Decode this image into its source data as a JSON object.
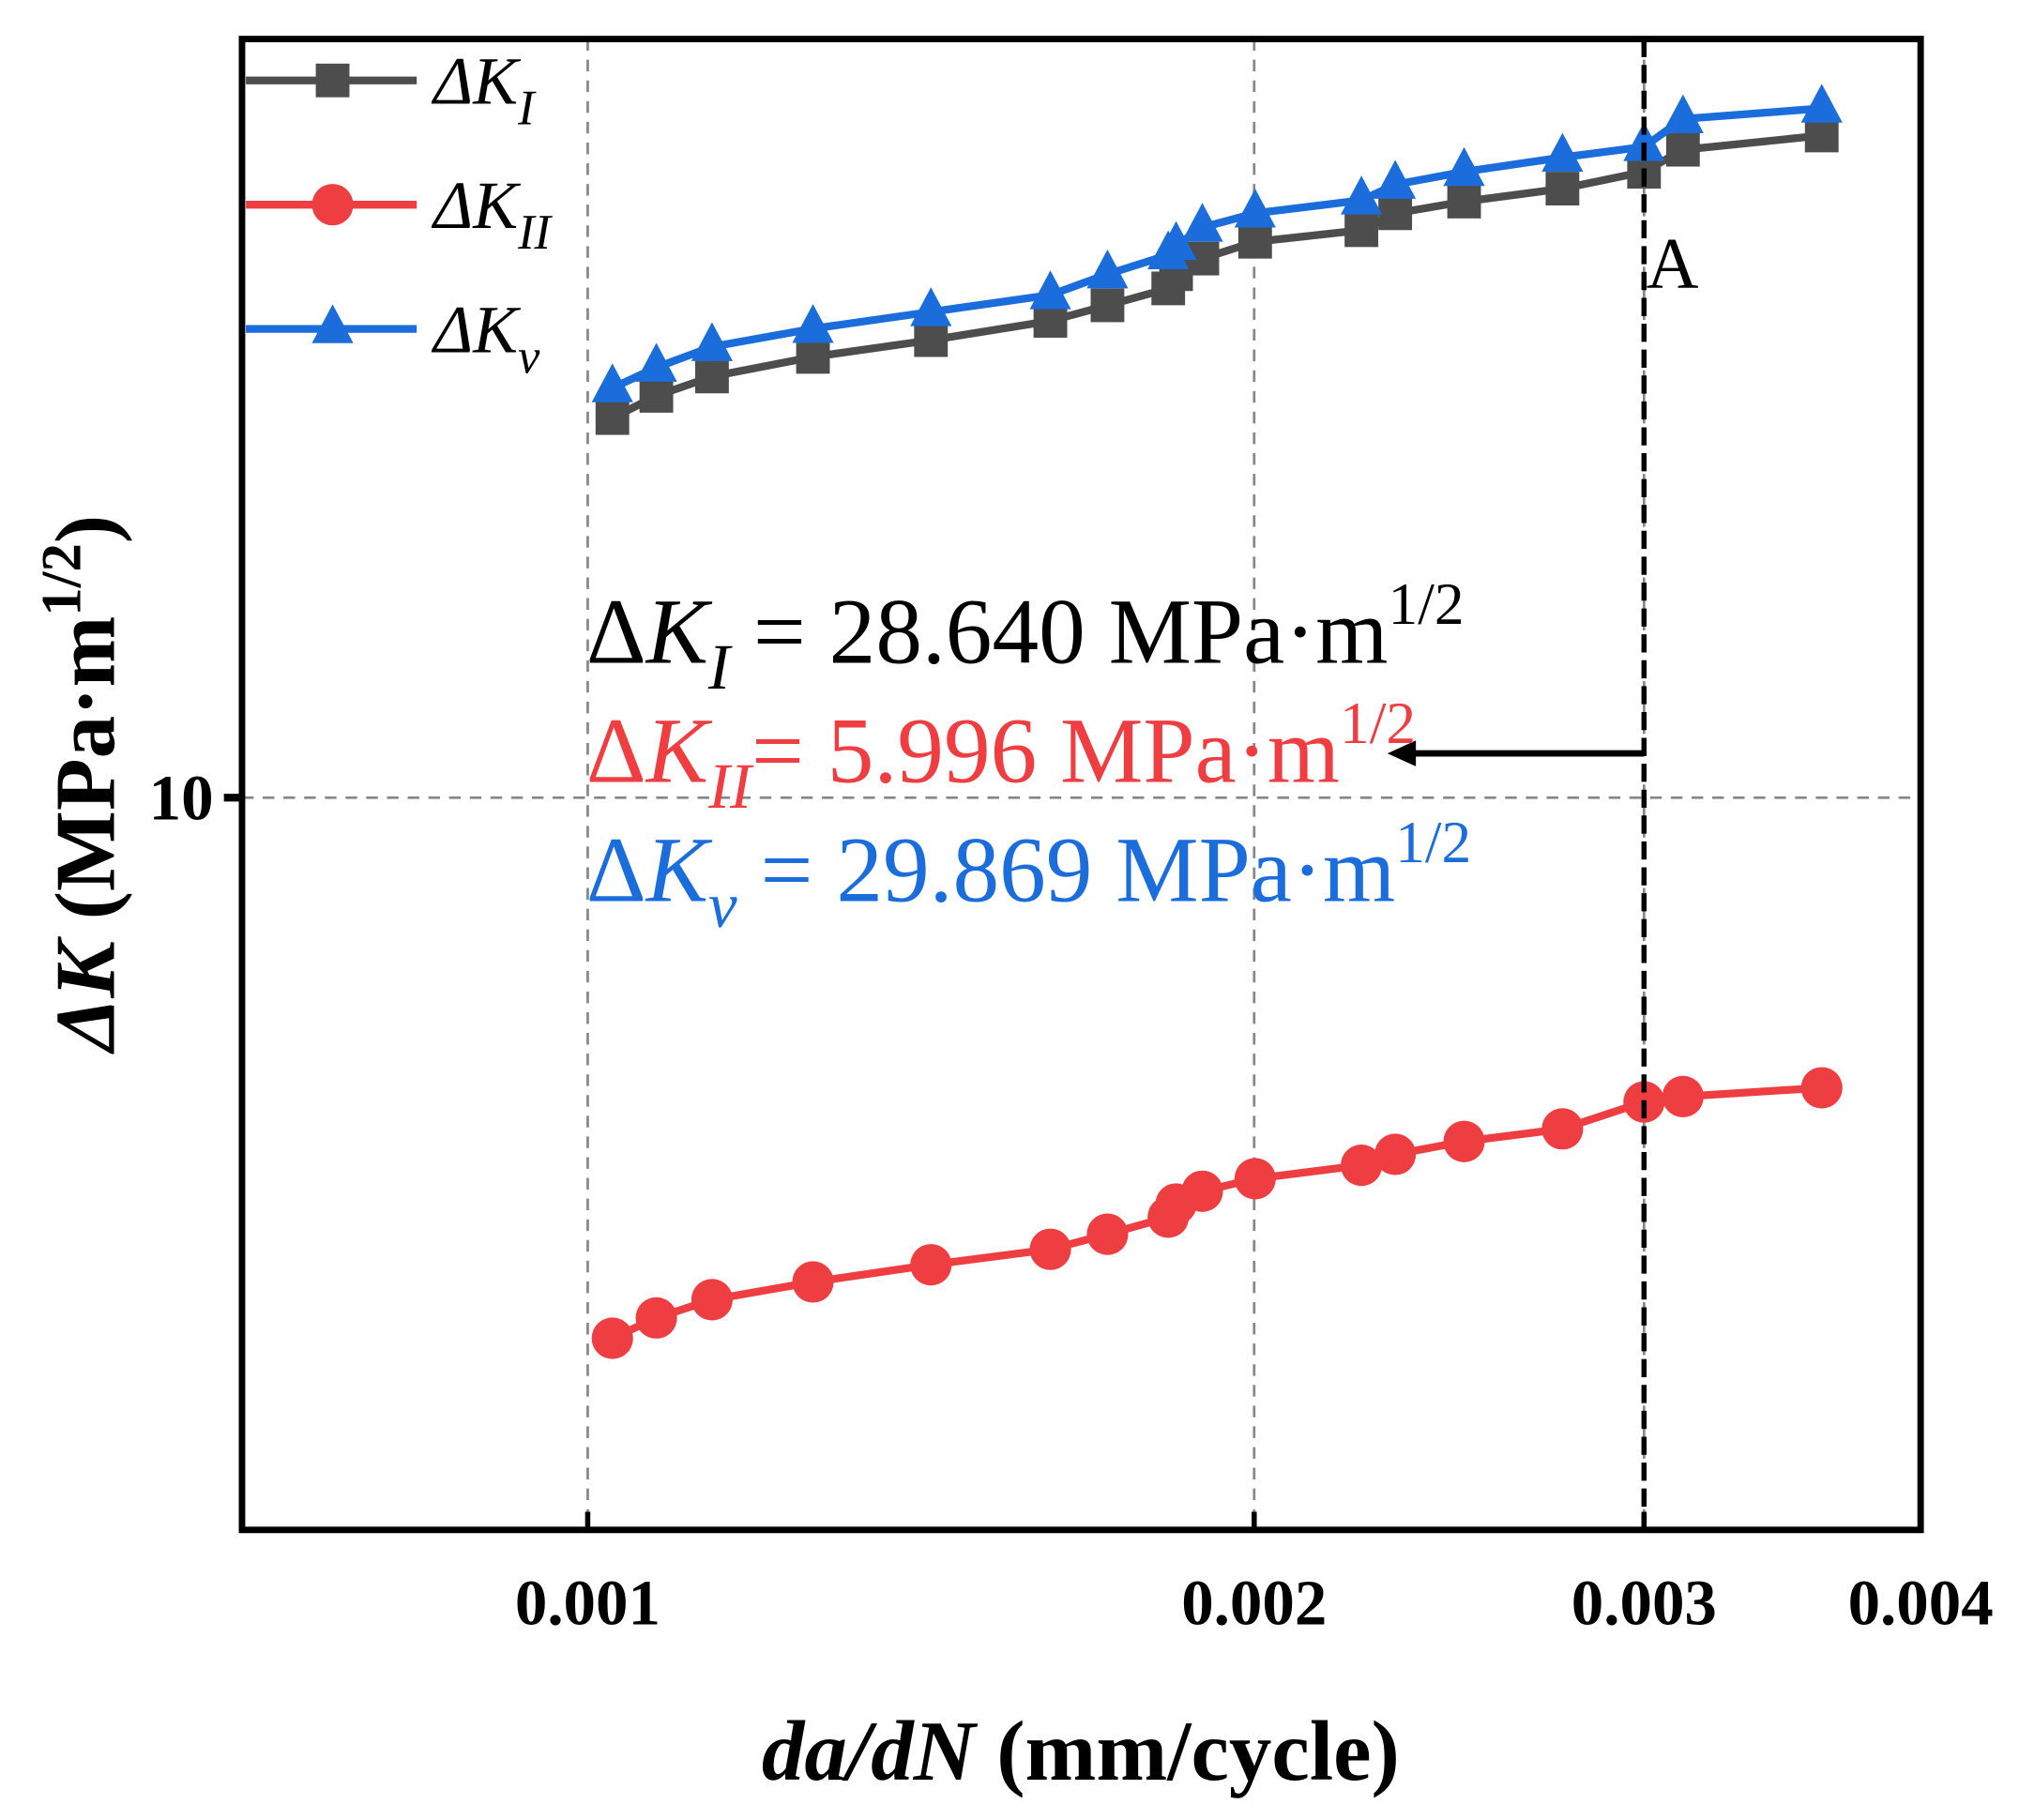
{
  "chart_data": {
    "type": "line",
    "xscale": "log",
    "yscale": "log",
    "xlabel_italic": "da/dN",
    "xlabel_rest": " (mm/cycle)",
    "ylabel_italic": "ΔK",
    "ylabel_rest": " (MPa·m",
    "ylabel_sup": "1/2",
    "ylabel_close": ")",
    "xlim": [
      0.000698,
      0.004
    ],
    "ylim": [
      2.92,
      35.8
    ],
    "xticks": [
      {
        "value": 0.001,
        "label": "0.001"
      },
      {
        "value": 0.002,
        "label": "0.002"
      },
      {
        "value": 0.003,
        "label": "0.003"
      },
      {
        "value": 0.004,
        "label": "0.004"
      }
    ],
    "yticks": [
      {
        "value": 10,
        "label": "10"
      }
    ],
    "grid": true,
    "legend_position": "top-left",
    "x": [
      0.001026,
      0.001074,
      0.001138,
      0.001264,
      0.001429,
      0.001618,
      0.001717,
      0.001829,
      0.001844,
      0.001895,
      0.002002,
      0.002236,
      0.002316,
      0.002488,
      0.002756,
      0.003,
      0.003124,
      0.003609
    ],
    "series": [
      {
        "name": "ΔK_I",
        "base": "ΔK",
        "sub": "I",
        "color": "#4d4d4d",
        "marker": "square",
        "values": [
          18.93,
          19.65,
          20.3,
          20.98,
          21.58,
          22.29,
          22.88,
          23.54,
          24.11,
          24.75,
          25.46,
          25.96,
          26.71,
          27.24,
          27.84,
          28.64,
          29.72,
          30.44
        ]
      },
      {
        "name": "ΔK_II",
        "base": "ΔK",
        "sub": "II",
        "color": "#ef3e42",
        "marker": "circle",
        "values": [
          4.03,
          4.17,
          4.3,
          4.43,
          4.56,
          4.68,
          4.8,
          4.94,
          5.05,
          5.16,
          5.27,
          5.39,
          5.49,
          5.61,
          5.73,
          5.996,
          6.05,
          6.14
        ]
      },
      {
        "name": "ΔK_v",
        "base": "ΔK",
        "sub": "v",
        "color": "#1a6ddb",
        "marker": "triangle",
        "values": [
          19.91,
          20.61,
          21.34,
          22.0,
          22.63,
          23.28,
          24.11,
          24.9,
          25.29,
          26.08,
          26.71,
          27.3,
          28.03,
          28.64,
          29.34,
          29.869,
          31.3,
          31.86
        ]
      }
    ],
    "marker_line": {
      "x": 0.003,
      "label": "A"
    },
    "annotations": [
      {
        "base": "ΔK",
        "sub": "I",
        "text": " = 28.640 MPa·m",
        "sup": "1/2",
        "color": "#000000"
      },
      {
        "base": "ΔK",
        "sub": "II",
        "text": "= 5.996 MPa·m",
        "sup": "1/2",
        "color": "#ef3e42"
      },
      {
        "base": "ΔK",
        "sub": "v",
        "text": " = 29.869 MPa·m",
        "sup": "1/2",
        "color": "#1a6ddb"
      }
    ]
  }
}
